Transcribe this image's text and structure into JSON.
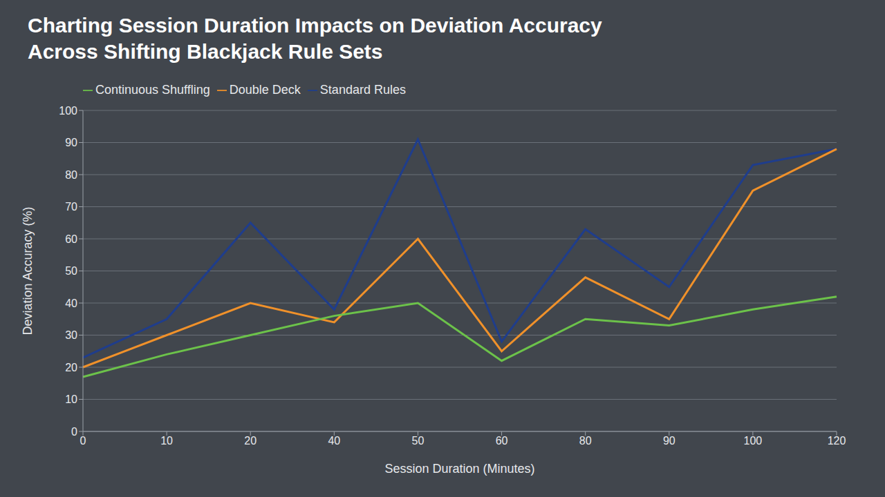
{
  "chart_data": {
    "type": "line",
    "title": "Charting Session Duration Impacts on Deviation Accuracy Across Shifting Blackjack Rule Sets",
    "x_label": "Session Duration (Minutes)",
    "y_label": "Deviation Accuracy (%)",
    "categories": [
      "0",
      "10",
      "20",
      "40",
      "50",
      "60",
      "80",
      "90",
      "100",
      "120"
    ],
    "series": [
      {
        "name": "Standard Rules",
        "color": "#1f3d8c",
        "values": [
          23,
          35,
          65,
          38,
          91,
          28,
          63,
          45,
          83,
          88
        ]
      },
      {
        "name": "Double Deck",
        "color": "#f0912a",
        "values": [
          20,
          30,
          40,
          34,
          60,
          25,
          48,
          35,
          75,
          88
        ]
      },
      {
        "name": "Continuous Shuffling",
        "color": "#6cc24a",
        "values": [
          17,
          24,
          30,
          36,
          40,
          22,
          35,
          33,
          38,
          42
        ]
      }
    ],
    "ylim": [
      0,
      100
    ],
    "yticks": [
      0,
      10,
      20,
      30,
      40,
      50,
      60,
      70,
      80,
      90,
      100
    ],
    "grid": true,
    "legend": "top-left"
  }
}
